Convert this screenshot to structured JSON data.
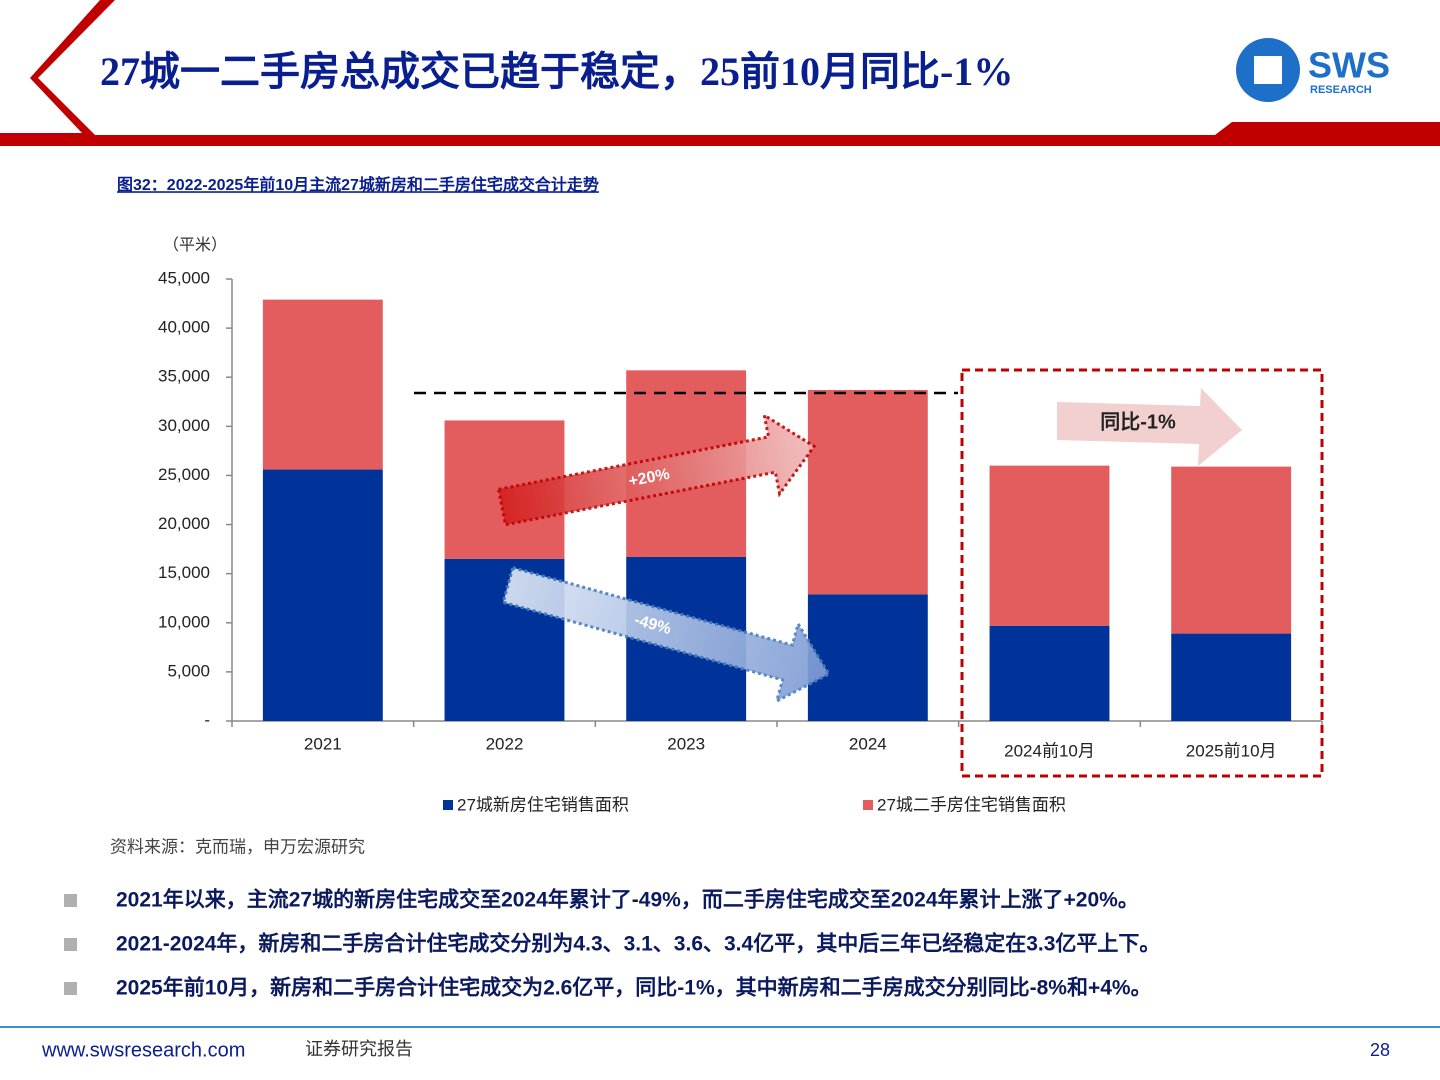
{
  "header": {
    "title": "27城一二手房总成交已趋于稳定，25前10月同比-1%",
    "logo": "SWS",
    "logo_sub": "RESEARCH"
  },
  "chart_data": {
    "type": "bar",
    "stacked": true,
    "caption": "图32：2022-2025年前10月主流27城新房和二手房住宅成交合计走势",
    "y_label": "（平米）",
    "categories": [
      "2021",
      "2022",
      "2023",
      "2024",
      "2024前10月",
      "2025前10月"
    ],
    "series": [
      {
        "name": "27城新房住宅销售面积",
        "color": "#003399",
        "values": [
          25600,
          16500,
          16700,
          12900,
          9700,
          8900
        ]
      },
      {
        "name": "27城二手房住宅销售面积",
        "color": "#e35d5e",
        "values": [
          17300,
          14100,
          19000,
          20800,
          16300,
          17000
        ]
      }
    ],
    "ylim": [
      0,
      45000
    ],
    "yticks": [
      {
        "value": 0,
        "label": "-"
      },
      {
        "value": 5000,
        "label": "5,000"
      },
      {
        "value": 10000,
        "label": "10,000"
      },
      {
        "value": 15000,
        "label": "15,000"
      },
      {
        "value": 20000,
        "label": "20,000"
      },
      {
        "value": 25000,
        "label": "25,000"
      },
      {
        "value": 30000,
        "label": "30,000"
      },
      {
        "value": 35000,
        "label": "35,000"
      },
      {
        "value": 40000,
        "label": "40,000"
      },
      {
        "value": 45000,
        "label": "45,000"
      }
    ],
    "grid": false,
    "legend": "bottom",
    "annotations": [
      "+20%",
      "-49%",
      "同比-1%"
    ]
  },
  "source": "资料来源：克而瑞，申万宏源研究",
  "bullets": [
    "2021年以来，主流27城的新房住宅成交至2024年累计了-49%，而二手房住宅成交至2024年累计上涨了+20%。",
    "2021-2024年，新房和二手房合计住宅成交分别为4.3、3.1、3.6、3.4亿平，其中后三年已经稳定在3.3亿平上下。",
    "2025年前10月，新房和二手房合计住宅成交为2.6亿平，同比-1%，其中新房和二手房成交分别同比-8%和+4%。"
  ],
  "footer": {
    "url": "www.swsresearch.com",
    "label": "证券研究报告",
    "page": "28"
  }
}
